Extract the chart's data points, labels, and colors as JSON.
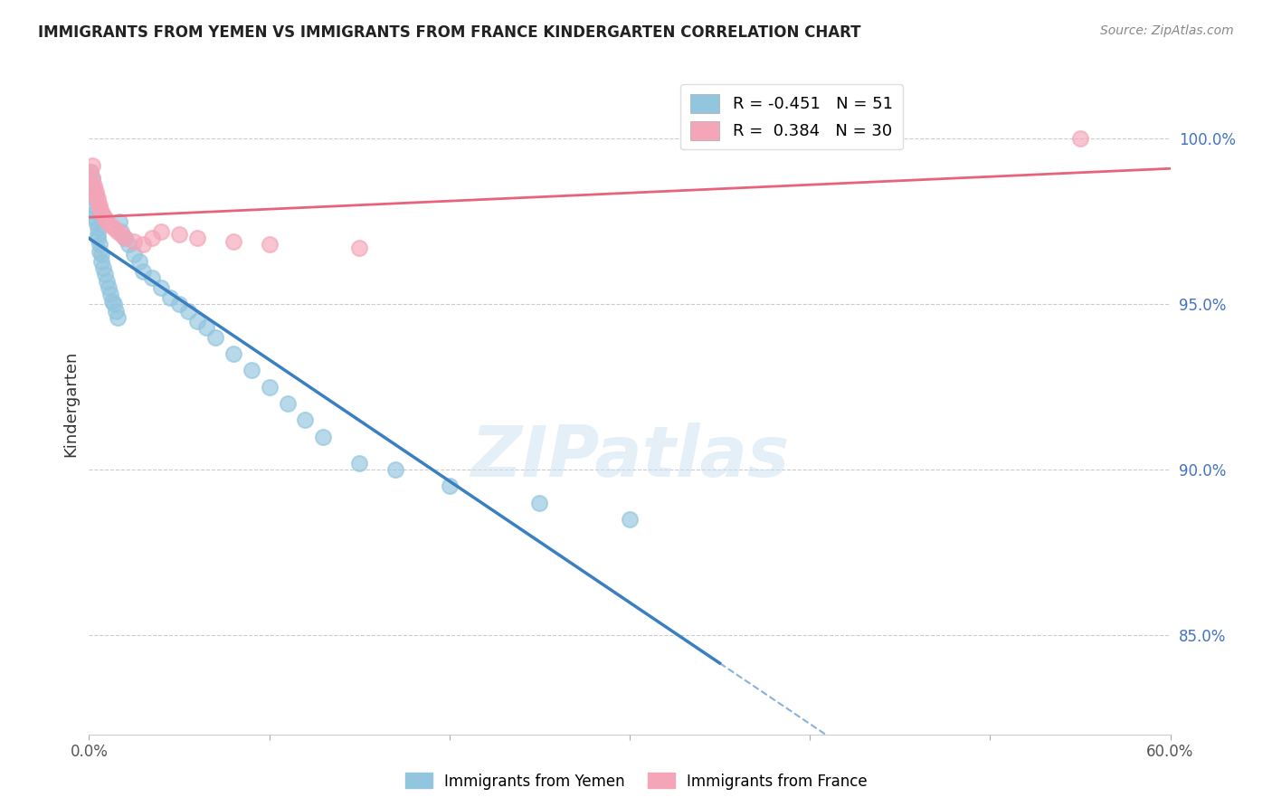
{
  "title": "IMMIGRANTS FROM YEMEN VS IMMIGRANTS FROM FRANCE KINDERGARTEN CORRELATION CHART",
  "source": "Source: ZipAtlas.com",
  "ylabel": "Kindergarten",
  "r_yemen": -0.451,
  "n_yemen": 51,
  "r_france": 0.384,
  "n_france": 30,
  "watermark": "ZIPatlas",
  "blue_color": "#92c5de",
  "pink_color": "#f4a5b8",
  "blue_line_color": "#3a7fc1",
  "pink_line_color": "#e8637a",
  "yemen_scatter_x": [
    0.001,
    0.002,
    0.002,
    0.003,
    0.003,
    0.003,
    0.004,
    0.004,
    0.004,
    0.005,
    0.005,
    0.005,
    0.006,
    0.006,
    0.007,
    0.007,
    0.008,
    0.009,
    0.01,
    0.011,
    0.012,
    0.013,
    0.014,
    0.015,
    0.016,
    0.017,
    0.018,
    0.02,
    0.022,
    0.025,
    0.028,
    0.03,
    0.035,
    0.04,
    0.045,
    0.05,
    0.055,
    0.06,
    0.065,
    0.07,
    0.08,
    0.09,
    0.1,
    0.11,
    0.12,
    0.13,
    0.15,
    0.17,
    0.2,
    0.25,
    0.3
  ],
  "yemen_scatter_y": [
    0.99,
    0.988,
    0.985,
    0.984,
    0.982,
    0.98,
    0.978,
    0.976,
    0.975,
    0.973,
    0.971,
    0.97,
    0.968,
    0.966,
    0.965,
    0.963,
    0.961,
    0.959,
    0.957,
    0.955,
    0.953,
    0.951,
    0.95,
    0.948,
    0.946,
    0.975,
    0.972,
    0.97,
    0.968,
    0.965,
    0.963,
    0.96,
    0.958,
    0.955,
    0.952,
    0.95,
    0.948,
    0.945,
    0.943,
    0.94,
    0.935,
    0.93,
    0.925,
    0.92,
    0.915,
    0.91,
    0.902,
    0.9,
    0.895,
    0.89,
    0.885
  ],
  "france_scatter_x": [
    0.001,
    0.002,
    0.002,
    0.003,
    0.003,
    0.004,
    0.004,
    0.005,
    0.005,
    0.006,
    0.006,
    0.007,
    0.008,
    0.009,
    0.01,
    0.012,
    0.014,
    0.016,
    0.018,
    0.02,
    0.025,
    0.03,
    0.035,
    0.04,
    0.05,
    0.06,
    0.08,
    0.1,
    0.15,
    0.55
  ],
  "france_scatter_y": [
    0.99,
    0.992,
    0.988,
    0.986,
    0.985,
    0.984,
    0.983,
    0.982,
    0.981,
    0.98,
    0.979,
    0.978,
    0.977,
    0.976,
    0.975,
    0.974,
    0.973,
    0.972,
    0.971,
    0.97,
    0.969,
    0.968,
    0.97,
    0.972,
    0.971,
    0.97,
    0.969,
    0.968,
    0.967,
    1.0
  ],
  "x_min": 0.0,
  "x_max": 0.6,
  "y_min": 0.82,
  "y_max": 1.02,
  "yticks": [
    0.85,
    0.9,
    0.95,
    1.0
  ],
  "ytick_labels": [
    "85.0%",
    "90.0%",
    "95.0%",
    "100.0%"
  ],
  "xticks": [
    0.0,
    0.1,
    0.2,
    0.3,
    0.4,
    0.5,
    0.6
  ],
  "xtick_labels": [
    "0.0%",
    "",
    "",
    "",
    "",
    "",
    "60.0%"
  ],
  "solid_line_end_x": 0.35,
  "dashed_line_start_x": 0.35
}
